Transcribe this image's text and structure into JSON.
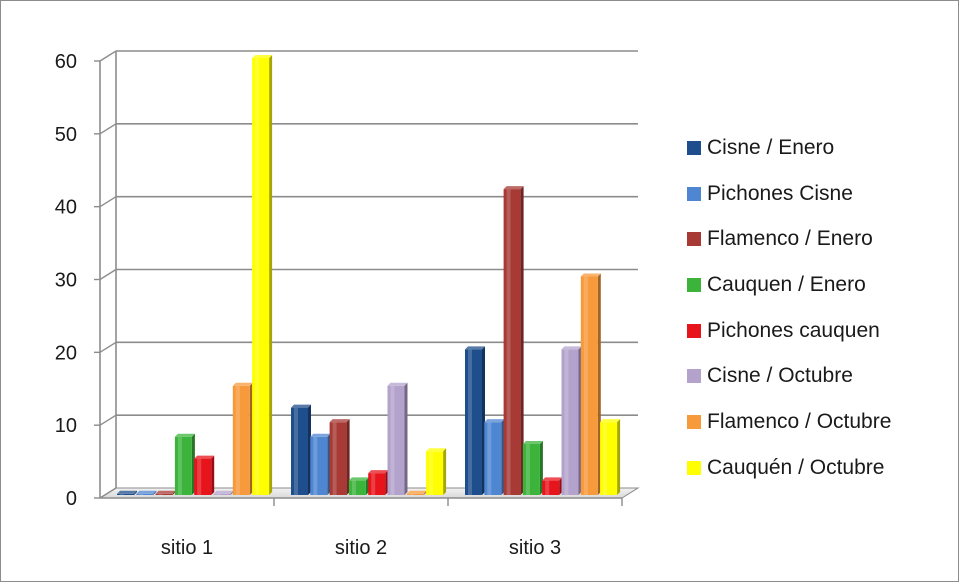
{
  "chart_data": {
    "type": "bar",
    "categories": [
      "sitio 1",
      "sitio 2",
      "sitio 3"
    ],
    "series": [
      {
        "name": "Cisne / Enero",
        "color": "#1f4e8c",
        "values": [
          0,
          12,
          20
        ]
      },
      {
        "name": "Pichones Cisne",
        "color": "#4f86d1",
        "values": [
          0,
          8,
          10
        ]
      },
      {
        "name": "Flamenco / Enero",
        "color": "#a83a35",
        "values": [
          0,
          10,
          42
        ]
      },
      {
        "name": "Cauquen / Enero",
        "color": "#3cb43c",
        "values": [
          8,
          2,
          7
        ]
      },
      {
        "name": "Pichones cauquen",
        "color": "#e8141c",
        "values": [
          5,
          3,
          2
        ]
      },
      {
        "name": "Cisne / Octubre",
        "color": "#b3a2cc",
        "values": [
          0,
          15,
          20
        ]
      },
      {
        "name": "Flamenco / Octubre",
        "color": "#f79a3c",
        "values": [
          15,
          0,
          30
        ]
      },
      {
        "name": "Cauquén / Octubre",
        "color": "#ffff00",
        "values": [
          60,
          6,
          10
        ]
      }
    ],
    "ylim": [
      0,
      60
    ],
    "yticks": [
      "0",
      "10",
      "20",
      "30",
      "40",
      "50",
      "60"
    ],
    "grid": true,
    "legend_position": "right",
    "title": "",
    "xlabel": "",
    "ylabel": ""
  }
}
